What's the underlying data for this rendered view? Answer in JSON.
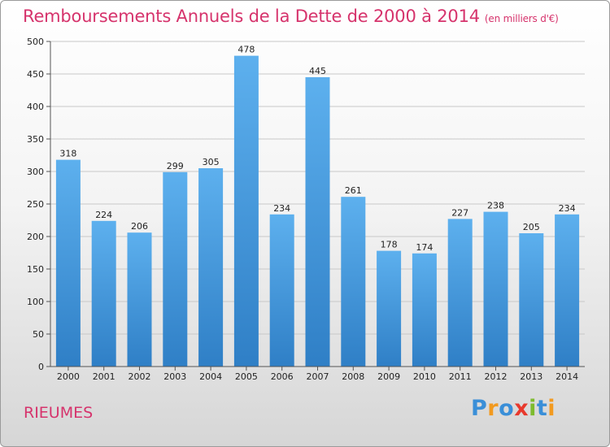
{
  "chart_data": {
    "type": "bar",
    "title": "Remboursements Annuels de la Dette de 2000 à 2014",
    "subtitle": "(en milliers d'€)",
    "categories": [
      "2000",
      "2001",
      "2002",
      "2003",
      "2004",
      "2005",
      "2006",
      "2007",
      "2008",
      "2009",
      "2010",
      "2011",
      "2012",
      "2013",
      "2014"
    ],
    "values": [
      318,
      224,
      206,
      299,
      305,
      478,
      234,
      445,
      261,
      178,
      174,
      227,
      238,
      205,
      234
    ],
    "ylim": [
      0,
      500
    ],
    "yticks": [
      0,
      50,
      100,
      150,
      200,
      250,
      300,
      350,
      400,
      450,
      500
    ],
    "xlabel": "",
    "ylabel": "",
    "grid": true,
    "bar_color": "#4a9fe0"
  },
  "footer": {
    "commune": "RIEUMES"
  },
  "logo": {
    "letters": [
      {
        "ch": "P",
        "color": "#3a8fd8"
      },
      {
        "ch": "r",
        "color": "#f29a1f"
      },
      {
        "ch": "o",
        "color": "#3a8fd8"
      },
      {
        "ch": "x",
        "color": "#e8392d"
      },
      {
        "ch": "i",
        "color": "#7dbb2e"
      },
      {
        "ch": "t",
        "color": "#3a8fd8"
      },
      {
        "ch": "i",
        "color": "#f29a1f"
      }
    ]
  }
}
